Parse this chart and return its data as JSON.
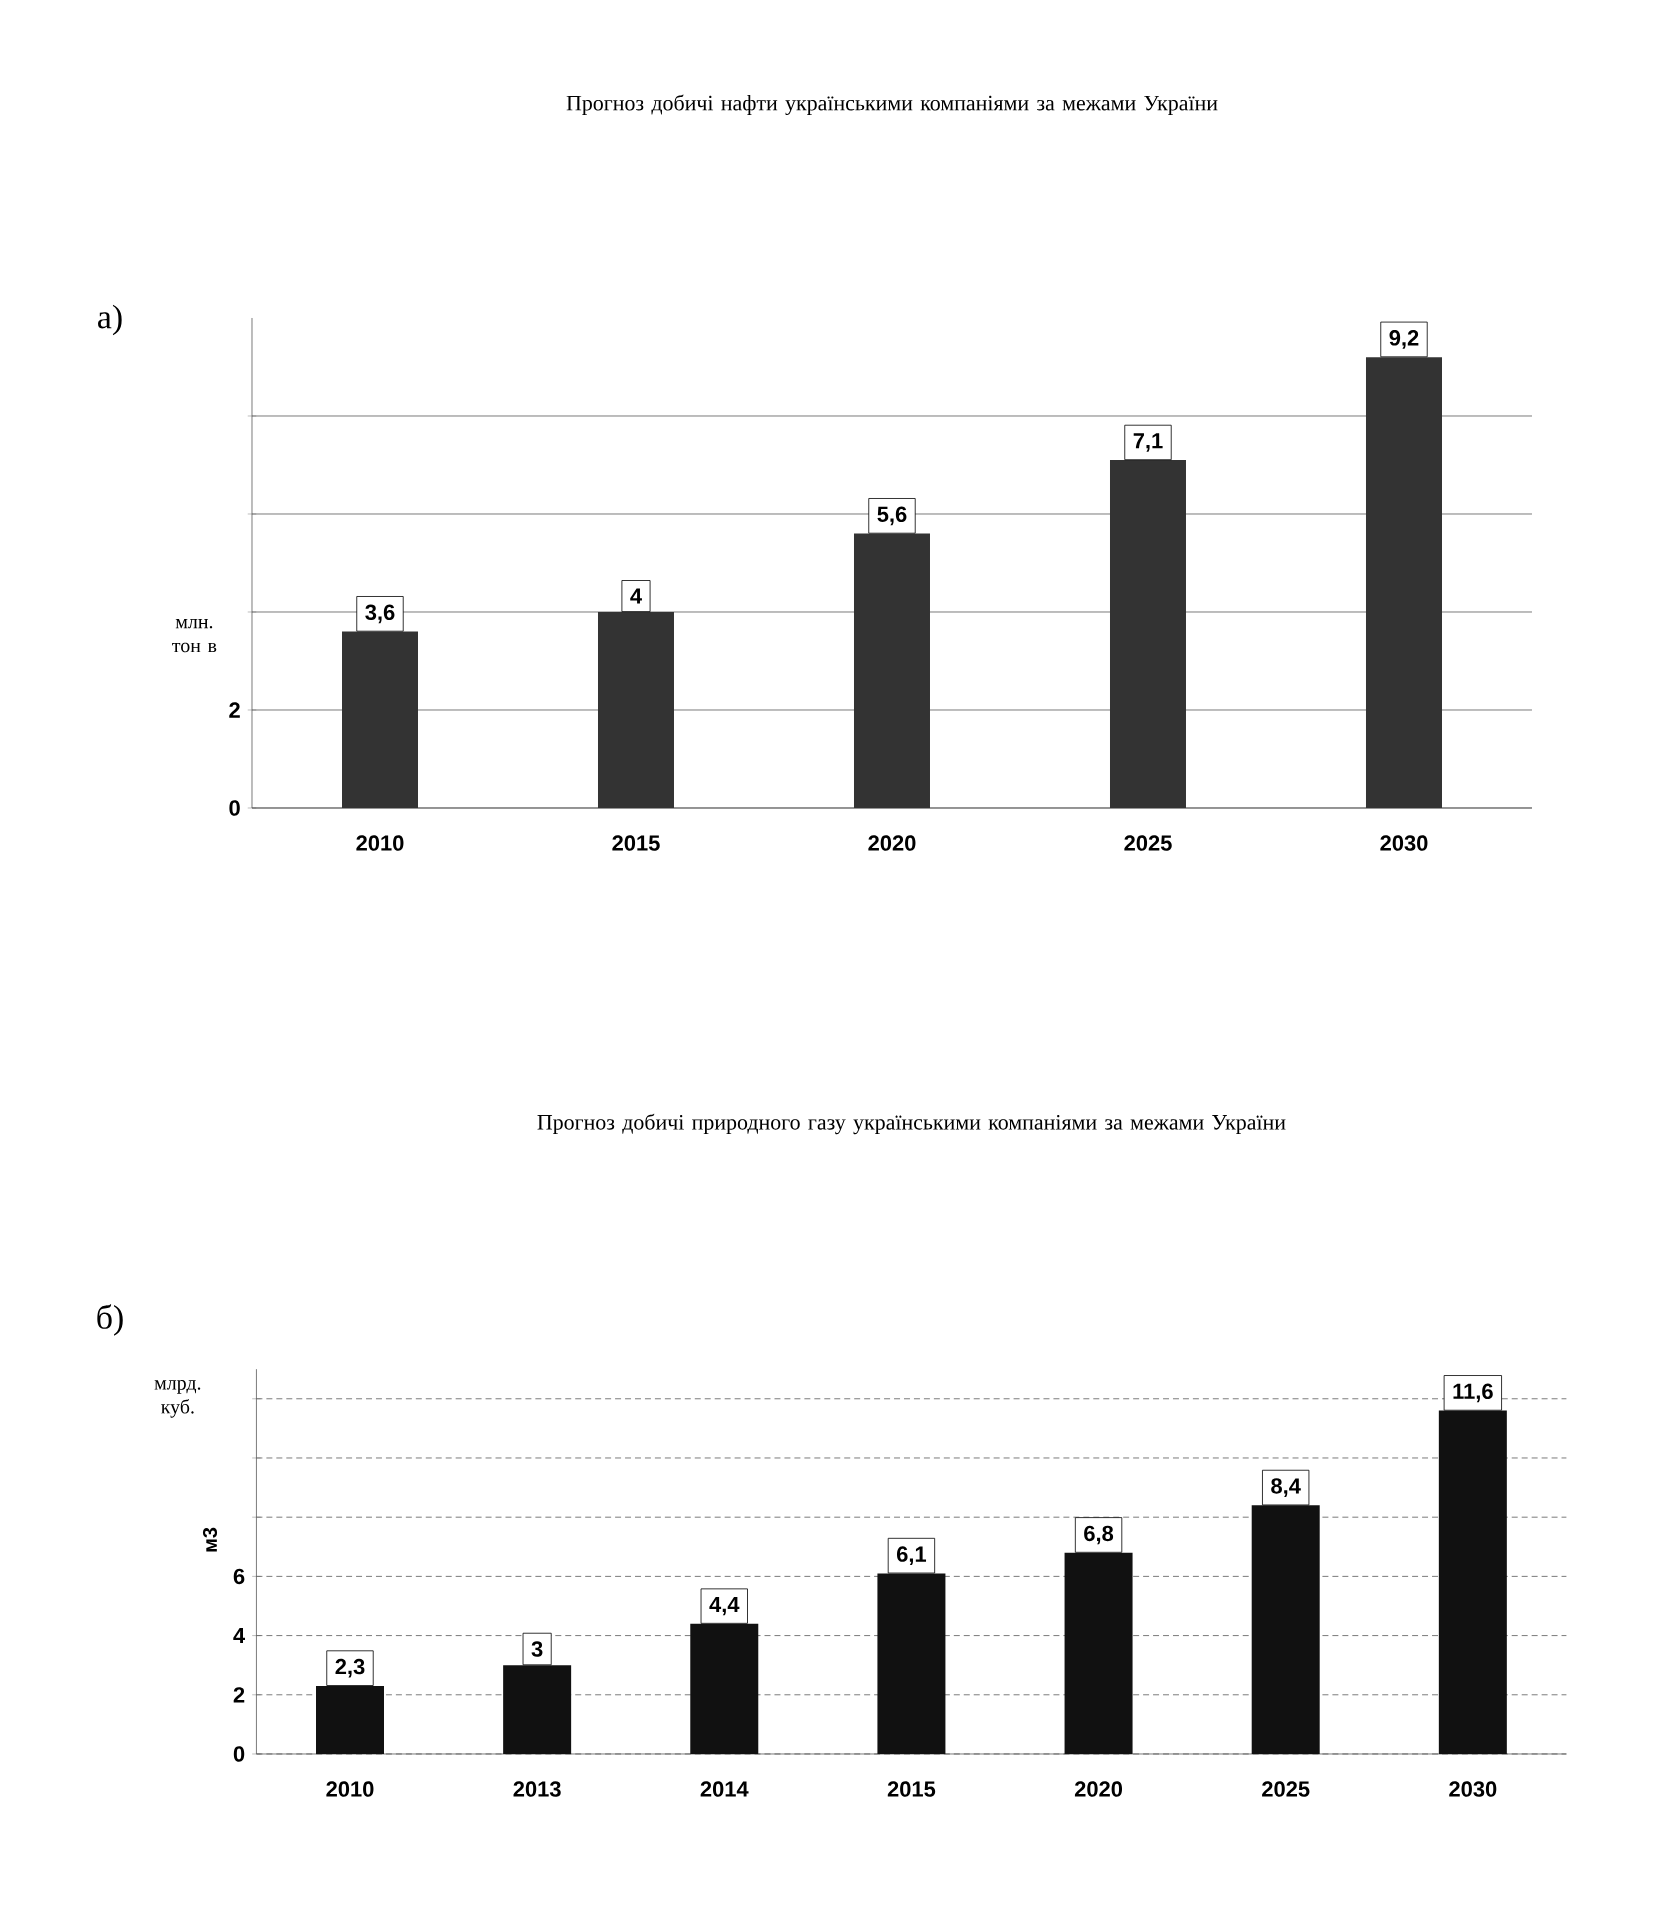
{
  "chart_data": [
    {
      "type": "bar",
      "title": "Прогноз добичі нафти українськими компаніями за межами України",
      "ylabel": "млн. тон в",
      "annotations": [
        "а)"
      ],
      "categories": [
        "2010",
        "2015",
        "2020",
        "2025",
        "2030"
      ],
      "values": [
        3.6,
        4,
        5.6,
        7.1,
        9.2
      ],
      "value_labels": [
        "3,6",
        "4",
        "5,6",
        "7,1",
        "9,2"
      ],
      "color": "#333333",
      "ylim": [
        0,
        10
      ],
      "yticks": [
        0,
        2,
        {
          "value": 4,
          "label": null
        },
        {
          "value": 6,
          "label": null
        },
        {
          "value": 8,
          "label": null
        }
      ],
      "grid": "y"
    },
    {
      "type": "bar",
      "title": "Прогноз добичі природного газу українськими компаніями за межами України",
      "ylabel": "млрд. куб.",
      "annotations": [
        "б)",
        "м3"
      ],
      "categories": [
        "2010",
        "2013",
        "2014",
        "2015",
        "2020",
        "2025",
        "2030"
      ],
      "values": [
        2.3,
        3,
        4.4,
        6.1,
        6.8,
        8.4,
        11.6
      ],
      "value_labels": [
        "2,3",
        "3",
        "4,4",
        "6,1",
        "6,8",
        "8,4",
        "11,6"
      ],
      "color": "#111111",
      "ylim": [
        0,
        13
      ],
      "yticks": [
        0,
        2,
        4,
        6,
        {
          "value": 8,
          "label": null
        },
        {
          "value": 10,
          "label": null
        },
        {
          "value": 12,
          "label": null
        }
      ],
      "grid": "y"
    }
  ]
}
